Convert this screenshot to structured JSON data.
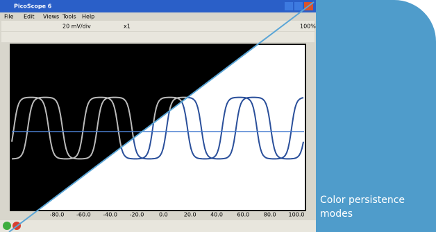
{
  "window": {
    "title": "PicoScope 6",
    "menu": [
      "File",
      "Edit",
      "Views",
      "Tools",
      "Help"
    ],
    "toolbar": {
      "range": "20 mV/div",
      "probe": "x1",
      "zoom": "100%"
    }
  },
  "x_axis": {
    "labels": [
      "-80.0",
      "-60.0",
      "-40.0",
      "-20.0",
      "0.0",
      "20.0",
      "40.0",
      "60.0",
      "80.0",
      "100.0"
    ]
  },
  "caption": "Color persistence modes"
}
